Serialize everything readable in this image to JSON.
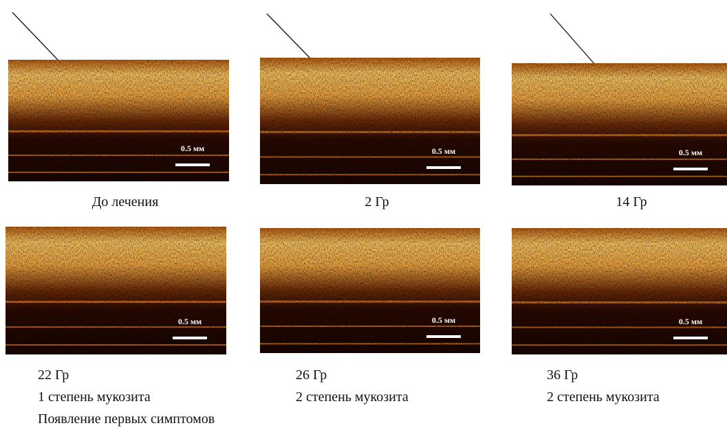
{
  "panels": [
    {
      "scale_label": "0.5 мм",
      "caption": [
        "До лечения"
      ]
    },
    {
      "scale_label": "0.5 мм",
      "caption": [
        "2 Гр"
      ]
    },
    {
      "scale_label": "0.5 мм",
      "caption": [
        "14 Гр"
      ]
    },
    {
      "scale_label": "0.5 мм",
      "caption": [
        "22 Гр",
        "1 степень мукозита",
        "Появление первых симптомов"
      ]
    },
    {
      "scale_label": "0.5 мм",
      "caption": [
        "26 Гр",
        "2 степень мукозита"
      ]
    },
    {
      "scale_label": "0.5 мм",
      "caption": [
        "36 Гр",
        "2 степень мукозита"
      ]
    }
  ]
}
